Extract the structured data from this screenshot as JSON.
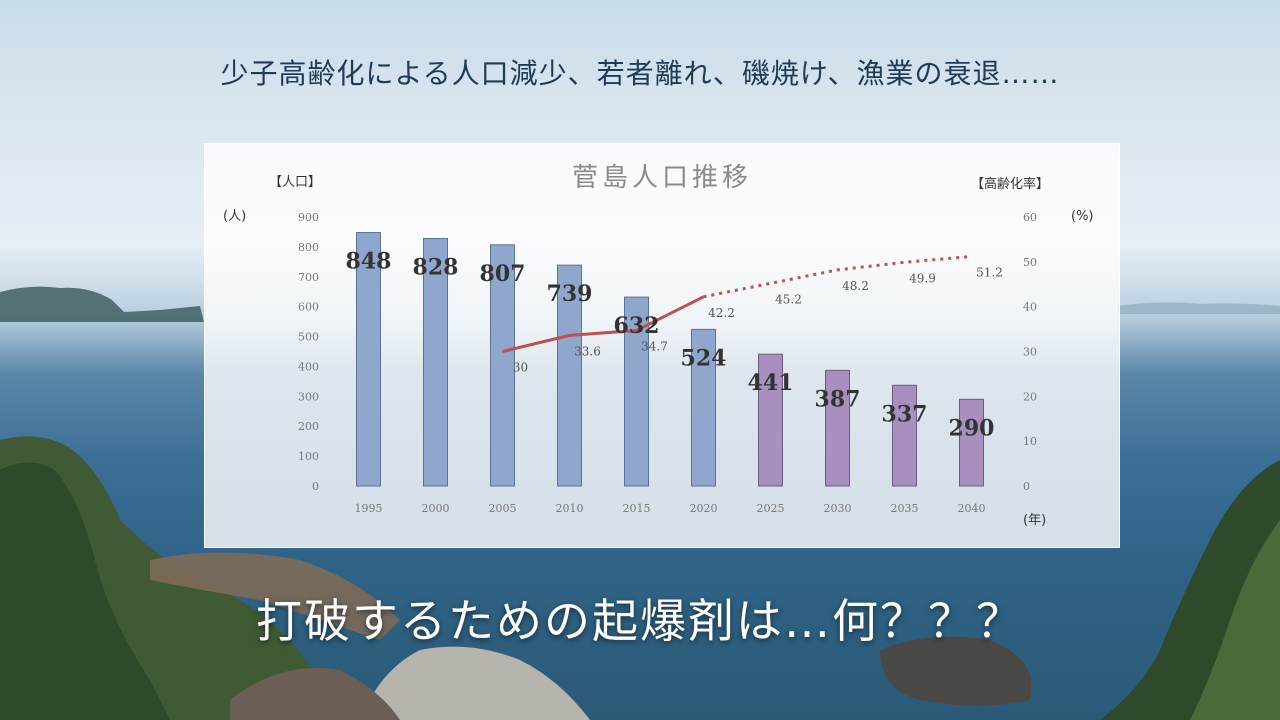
{
  "headline": "少子高齢化による人口減少、若者離れ、磯焼け、漁業の衰退……",
  "bottom_text": "打破するための起爆剤は…何？？？",
  "colors": {
    "bar_actual": "#8fa7cc",
    "bar_projected": "#a88fbf",
    "line_actual": "#c0504d",
    "line_projected": "#c0504d"
  },
  "chart_data": {
    "type": "bar",
    "title": "菅島人口推移",
    "left_axis_title": "【人口】",
    "left_unit": "(人)",
    "right_axis_title": "【高齢化率】",
    "right_unit": "(%)",
    "x_unit": "(年)",
    "categories": [
      "1995",
      "2000",
      "2005",
      "2010",
      "2015",
      "2020",
      "2025",
      "2030",
      "2035",
      "2040"
    ],
    "ylim": [
      0,
      900
    ],
    "yticks": [
      0,
      100,
      200,
      300,
      400,
      500,
      600,
      700,
      800,
      900
    ],
    "y2lim": [
      0,
      60
    ],
    "y2ticks": [
      0,
      10,
      20,
      30,
      40,
      50,
      60
    ],
    "series": [
      {
        "values": [
          848,
          828,
          807,
          739,
          632,
          524,
          441,
          387,
          337,
          290
        ],
        "projected_from_index": 6
      },
      {
        "type": "line",
        "axis": "right",
        "values": [
          null,
          null,
          30,
          33.6,
          34.7,
          42.2,
          45.2,
          48.2,
          49.9,
          51.2
        ],
        "labels": [
          "",
          "",
          "30",
          "33.6",
          "34.7",
          "42.2",
          "45.2",
          "48.2",
          "49.9",
          "51.2"
        ],
        "projected_from_index": 5
      }
    ],
    "grid": false
  }
}
